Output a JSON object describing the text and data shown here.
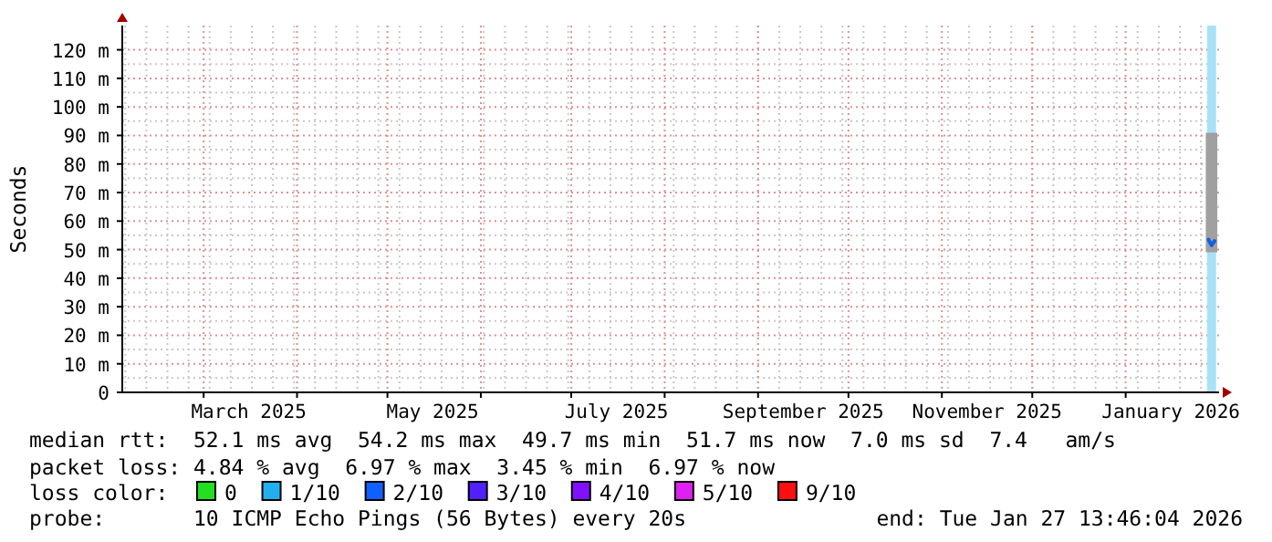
{
  "chart_data": {
    "type": "line",
    "ylabel": "Seconds",
    "xlim": [
      "2025-02-02",
      "2026-02-01"
    ],
    "xticks": [
      {
        "value": "2025-03-16",
        "label": "March 2025"
      },
      {
        "value": "2025-05-16",
        "label": "May 2025"
      },
      {
        "value": "2025-07-16",
        "label": "July 2025"
      },
      {
        "value": "2025-09-16",
        "label": "September 2025"
      },
      {
        "value": "2025-11-16",
        "label": "November 2025"
      },
      {
        "value": "2026-01-16",
        "label": "January 2026"
      }
    ],
    "ylim": [
      0,
      128.5
    ],
    "yticks": [
      {
        "value": 0,
        "label": "0"
      },
      {
        "value": 10,
        "label": "10 m"
      },
      {
        "value": 20,
        "label": "20 m"
      },
      {
        "value": 30,
        "label": "30 m"
      },
      {
        "value": 40,
        "label": "40 m"
      },
      {
        "value": 50,
        "label": "50 m"
      },
      {
        "value": 60,
        "label": "60 m"
      },
      {
        "value": 70,
        "label": "70 m"
      },
      {
        "value": 80,
        "label": "80 m"
      },
      {
        "value": 90,
        "label": "90 m"
      },
      {
        "value": 100,
        "label": "100 m"
      },
      {
        "value": 110,
        "label": "110 m"
      },
      {
        "value": 120,
        "label": "120 m"
      }
    ],
    "grid": true,
    "series": [
      {
        "color": "#1060e0",
        "x": [
          "2026-01-28T12:00",
          "2026-01-29T12:00",
          "2026-01-30T12:00"
        ],
        "values": [
          53.5,
          51.5,
          53
        ],
        "lower": [
          50,
          50,
          50
        ],
        "upper": [
          90,
          90,
          90
        ]
      }
    ],
    "bands": [
      {
        "axis": "x",
        "from": "2026-01-28",
        "to": "2026-01-31",
        "color": "#a8e2f8"
      }
    ],
    "annotations": [
      "median rtt:  52.1 ms avg  54.2 ms max  49.7 ms min  51.7 ms now  7.0 ms sd  7.4   am/s",
      "packet loss: 4.84 % avg  6.97 % max  3.45 % min  6.97 % now",
      "loss color:",
      "0",
      "1/10",
      "2/10",
      "3/10",
      "4/10",
      "5/10",
      "9/10",
      "probe:       10 ICMP Echo Pings (56 Bytes) every 20s",
      "end: Tue Jan 27 13:46:04 2026"
    ]
  }
}
